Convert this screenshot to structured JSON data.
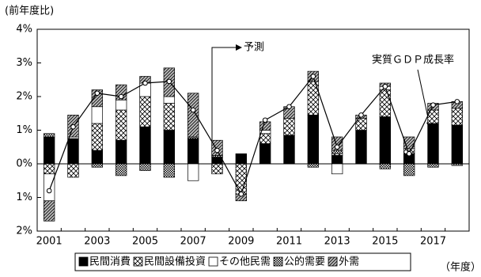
{
  "chart_data": {
    "type": "bar",
    "y_label": "(前年度比)",
    "x_label": "（年度）",
    "annotation": "予測",
    "categories": [
      "2001",
      null,
      "2003",
      null,
      "2005",
      null,
      "2007",
      null,
      "2009",
      null,
      "2011",
      null,
      "2013",
      null,
      "2015",
      null,
      "2017",
      null
    ],
    "ylim": [
      -2,
      4
    ],
    "yticks": [
      {
        "value": 4,
        "label": "4%"
      },
      {
        "value": 3,
        "label": "3%"
      },
      {
        "value": 2,
        "label": "2%"
      },
      {
        "value": 1,
        "label": "1%"
      },
      {
        "value": 0,
        "label": "0%"
      },
      {
        "value": -1,
        "label": "1%"
      },
      {
        "value": -2,
        "label": "2%"
      }
    ],
    "series": [
      {
        "name": "民間消費",
        "color": "#000000",
        "pattern": "solid",
        "values": [
          0.8,
          0.75,
          0.4,
          0.7,
          1.1,
          1.0,
          0.75,
          0.2,
          0.3,
          0.6,
          0.85,
          1.45,
          0.25,
          1.0,
          1.4,
          0.3,
          1.2,
          1.15
        ]
      },
      {
        "name": "民間設備投資",
        "color": "#000000",
        "pattern": "crosshatch",
        "values": [
          -0.3,
          -0.4,
          0.8,
          0.9,
          0.9,
          0.8,
          0.0,
          -0.3,
          -0.9,
          0.3,
          0.5,
          1.0,
          0.05,
          0.35,
          0.8,
          0.15,
          0.4,
          0.5
        ]
      },
      {
        "name": "その他民需",
        "color": "#000000",
        "pattern": "white",
        "values": [
          -0.8,
          0.05,
          0.5,
          0.3,
          0.4,
          0.2,
          -0.5,
          0.0,
          0.0,
          0.1,
          0.0,
          0.0,
          -0.3,
          0.0,
          0.1,
          0.0,
          0.0,
          0.0
        ]
      },
      {
        "name": "公的需要",
        "color": "#000000",
        "pattern": "dots",
        "values": [
          0.1,
          0.0,
          -0.1,
          -0.35,
          -0.2,
          -0.4,
          0.05,
          0.05,
          0.0,
          0.0,
          0.0,
          -0.1,
          0.1,
          0.0,
          -0.15,
          -0.35,
          -0.1,
          -0.05
        ]
      },
      {
        "name": "外需",
        "color": "#000000",
        "pattern": "hatch",
        "values": [
          -0.6,
          0.65,
          0.5,
          0.45,
          0.2,
          0.85,
          1.3,
          0.45,
          -0.2,
          0.25,
          0.35,
          0.3,
          0.4,
          0.1,
          0.1,
          0.35,
          0.2,
          0.2
        ]
      },
      {
        "name": "実質ＧＤＰ成長率",
        "color": "#000000",
        "type": "line",
        "values": [
          -0.8,
          1.1,
          2.1,
          2.0,
          2.4,
          2.45,
          1.6,
          0.4,
          -0.9,
          1.3,
          1.7,
          2.6,
          0.5,
          1.45,
          2.3,
          0.3,
          1.75,
          1.85
        ]
      }
    ]
  }
}
